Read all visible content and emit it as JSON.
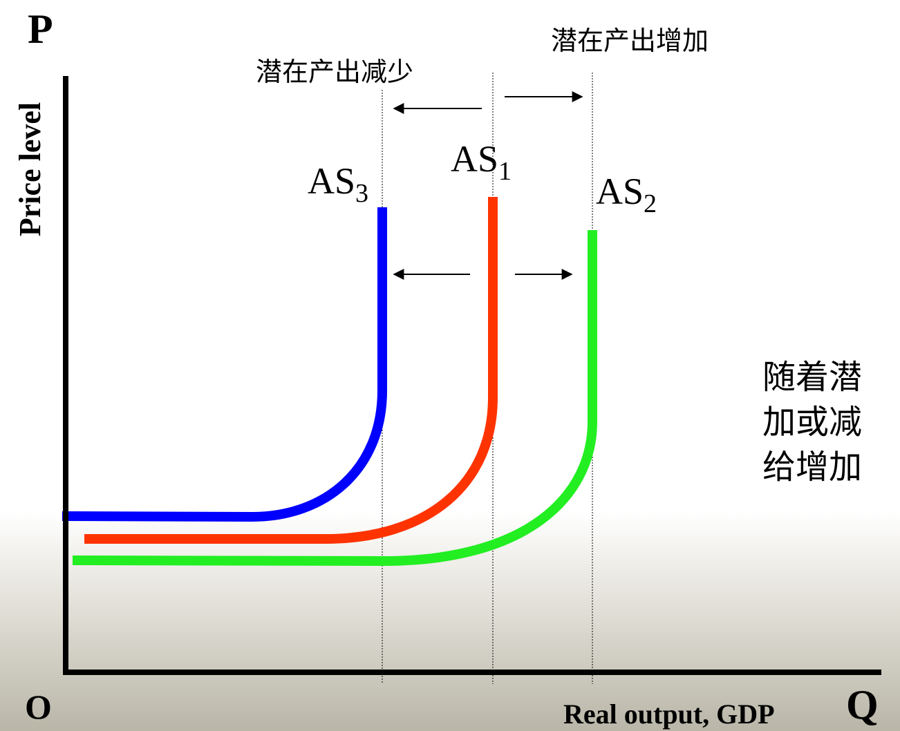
{
  "axes": {
    "y_symbol": "P",
    "y_label": "Price level",
    "origin": "O",
    "x_symbol": "Q",
    "x_label": "Real output, GDP"
  },
  "annotations": {
    "decrease": "潜在产出减少",
    "increase": "潜在产出增加"
  },
  "curves": [
    {
      "label": "AS",
      "subscript": "3"
    },
    {
      "label": "AS",
      "subscript": "1"
    },
    {
      "label": "AS",
      "subscript": "2"
    }
  ],
  "note": {
    "lines": [
      "随着潜",
      "加或减",
      "给增加"
    ]
  }
}
